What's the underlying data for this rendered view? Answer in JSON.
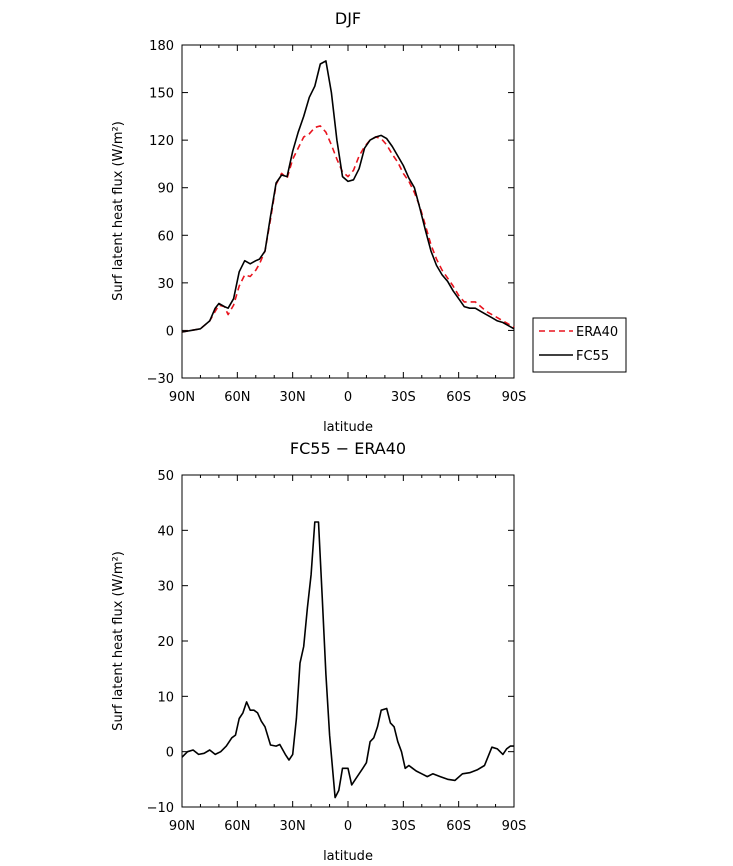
{
  "chart_data": [
    {
      "type": "line",
      "title": "DJF",
      "xlabel": "latitude",
      "ylabel": "Surf latent heat flux (W/m²)",
      "ylim": [
        -30,
        180
      ],
      "yticks": [
        -30,
        0,
        30,
        60,
        90,
        120,
        150,
        180
      ],
      "xlim": [
        90,
        -90
      ],
      "xticks": [
        90,
        60,
        30,
        0,
        -30,
        -60,
        -90
      ],
      "xtick_labels": [
        "90N",
        "60N",
        "30N",
        "0",
        "30S",
        "60S",
        "90S"
      ],
      "legend_position": "outside-right",
      "series": [
        {
          "name": "ERA40",
          "color": "#e8141e",
          "dash": "dashed",
          "x": [
            90,
            85,
            80,
            75,
            72,
            70,
            67,
            65,
            62,
            59,
            56,
            53,
            50,
            48,
            45,
            42,
            39,
            36,
            33,
            30,
            27,
            24,
            21,
            18,
            15,
            12,
            9,
            6,
            3,
            0,
            -3,
            -6,
            -9,
            -12,
            -15,
            -18,
            -21,
            -24,
            -27,
            -30,
            -33,
            -36,
            -39,
            -42,
            -45,
            -48,
            -51,
            -54,
            -57,
            -60,
            -63,
            -66,
            -69,
            -72,
            -75,
            -78,
            -81,
            -84,
            -87,
            -90
          ],
          "y": [
            -1,
            0,
            1,
            6,
            12,
            16,
            15,
            10,
            16,
            28,
            35,
            34,
            38,
            42,
            50,
            70,
            92,
            99,
            96,
            108,
            115,
            122,
            124,
            128,
            129,
            125,
            117,
            108,
            100,
            97,
            101,
            110,
            116,
            120,
            122,
            121,
            117,
            111,
            106,
            99,
            94,
            87,
            78,
            66,
            54,
            45,
            38,
            33,
            28,
            22,
            18,
            18,
            18,
            15,
            12,
            10,
            8,
            6,
            4,
            2
          ]
        },
        {
          "name": "FC55",
          "color": "#000000",
          "dash": "solid",
          "x": [
            90,
            85,
            80,
            75,
            72,
            70,
            67,
            65,
            62,
            59,
            56,
            53,
            50,
            48,
            45,
            42,
            39,
            36,
            33,
            30,
            27,
            24,
            21,
            18,
            15,
            12,
            9,
            6,
            3,
            0,
            -3,
            -6,
            -9,
            -12,
            -15,
            -18,
            -21,
            -24,
            -27,
            -30,
            -33,
            -36,
            -39,
            -42,
            -45,
            -48,
            -51,
            -54,
            -57,
            -60,
            -63,
            -66,
            -69,
            -72,
            -75,
            -78,
            -81,
            -84,
            -87,
            -90
          ],
          "y": [
            -1,
            0,
            1,
            6,
            14,
            17,
            15,
            14,
            20,
            37,
            44,
            42,
            44,
            45,
            50,
            72,
            93,
            98,
            97,
            113,
            125,
            135,
            147,
            154,
            168,
            170,
            150,
            120,
            97,
            94,
            95,
            102,
            115,
            120,
            122,
            123,
            121,
            116,
            110,
            104,
            96,
            90,
            77,
            63,
            50,
            41,
            35,
            31,
            25,
            20,
            15,
            14,
            14,
            12,
            10,
            8,
            6,
            5,
            3,
            1
          ]
        }
      ]
    },
    {
      "type": "line",
      "title": "FC55 − ERA40",
      "xlabel": "latitude",
      "ylabel": "Surf latent heat flux (W/m²)",
      "ylim": [
        -10,
        50
      ],
      "yticks": [
        -10,
        0,
        10,
        20,
        30,
        40,
        50
      ],
      "xlim": [
        90,
        -90
      ],
      "xticks": [
        90,
        60,
        30,
        0,
        -30,
        -60,
        -90
      ],
      "xtick_labels": [
        "90N",
        "60N",
        "30N",
        "0",
        "30S",
        "60S",
        "90S"
      ],
      "series": [
        {
          "color": "#000000",
          "dash": "solid",
          "x": [
            90,
            87,
            84,
            81,
            78,
            75,
            72,
            69,
            66,
            63,
            61,
            59,
            57,
            55,
            53,
            51,
            49,
            47,
            45,
            42,
            39,
            37,
            34,
            32,
            30,
            28,
            26,
            24,
            22,
            20,
            18,
            16,
            14,
            12,
            10,
            7,
            5,
            3,
            0,
            -2,
            -4,
            -6,
            -8,
            -10,
            -12,
            -14,
            -16,
            -18,
            -21,
            -23,
            -25,
            -27,
            -29,
            -31,
            -33,
            -35,
            -37,
            -40,
            -43,
            -46,
            -50,
            -54,
            -58,
            -62,
            -66,
            -70,
            -74,
            -78,
            -81,
            -84,
            -86,
            -88,
            -90
          ],
          "y": [
            -1,
            0,
            0.3,
            -0.5,
            -0.3,
            0.3,
            -0.5,
            0,
            1,
            2.5,
            3,
            6,
            7,
            9,
            7.5,
            7.5,
            7,
            5.5,
            4.5,
            1.2,
            1,
            1.3,
            -0.5,
            -1.5,
            -0.5,
            6,
            16,
            19,
            26,
            32,
            41.5,
            41.5,
            28,
            14,
            3,
            -8.3,
            -7,
            -3,
            -3,
            -6,
            -5,
            -4,
            -3,
            -2,
            1.8,
            2.5,
            4.5,
            7.5,
            7.8,
            5.2,
            4.5,
            1.8,
            0,
            -3,
            -2.5,
            -3,
            -3.5,
            -4,
            -4.5,
            -4,
            -4.5,
            -5,
            -5.2,
            -4,
            -3.8,
            -3.3,
            -2.5,
            0.8,
            0.5,
            -0.5,
            0.5,
            1,
            1
          ]
        }
      ]
    }
  ]
}
